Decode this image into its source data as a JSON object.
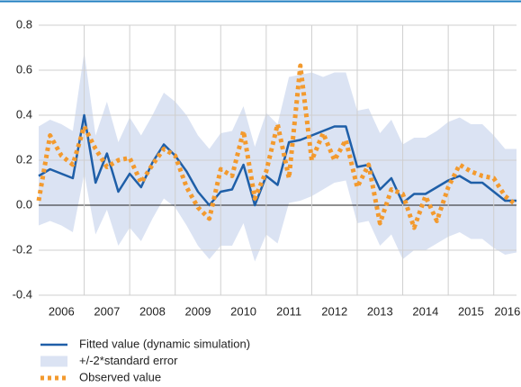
{
  "chart_data": {
    "type": "line",
    "x": [
      2006,
      2006.25,
      2006.5,
      2006.75,
      2007,
      2007.25,
      2007.5,
      2007.75,
      2008,
      2008.25,
      2008.5,
      2008.75,
      2009,
      2009.25,
      2009.5,
      2009.75,
      2010,
      2010.25,
      2010.5,
      2010.75,
      2011,
      2011.25,
      2011.5,
      2011.75,
      2012,
      2012.25,
      2012.5,
      2012.75,
      2013,
      2013.25,
      2013.5,
      2013.75,
      2014,
      2014.25,
      2014.5,
      2014.75,
      2015,
      2015.25,
      2015.5,
      2015.75,
      2016,
      2016.25,
      2016.5
    ],
    "series": [
      {
        "name": "Fitted value (dynamic simulation)",
        "color": "#1f5fa8",
        "style": "solid",
        "values": [
          0.13,
          0.16,
          0.14,
          0.12,
          0.4,
          0.1,
          0.23,
          0.06,
          0.14,
          0.08,
          0.19,
          0.27,
          0.22,
          0.15,
          0.06,
          0.0,
          0.06,
          0.07,
          0.18,
          0.0,
          0.13,
          0.09,
          0.28,
          0.29,
          0.31,
          0.33,
          0.35,
          0.35,
          0.17,
          0.18,
          0.07,
          0.12,
          0.01,
          0.05,
          0.05,
          0.08,
          0.11,
          0.13,
          0.1,
          0.1,
          0.06,
          0.02,
          0.02
        ]
      },
      {
        "name": "+/-2*standard error",
        "color": "#dbe3f3",
        "style": "band",
        "upper": [
          0.35,
          0.38,
          0.36,
          0.33,
          0.68,
          0.31,
          0.46,
          0.28,
          0.39,
          0.31,
          0.4,
          0.5,
          0.46,
          0.4,
          0.31,
          0.25,
          0.32,
          0.33,
          0.44,
          0.26,
          0.41,
          0.36,
          0.57,
          0.58,
          0.59,
          0.57,
          0.59,
          0.59,
          0.42,
          0.43,
          0.32,
          0.38,
          0.27,
          0.3,
          0.3,
          0.33,
          0.37,
          0.39,
          0.36,
          0.36,
          0.31,
          0.25,
          0.25
        ],
        "lower": [
          -0.09,
          -0.07,
          -0.09,
          -0.12,
          0.14,
          -0.13,
          -0.02,
          -0.18,
          -0.1,
          -0.16,
          -0.06,
          0.03,
          -0.01,
          -0.09,
          -0.18,
          -0.24,
          -0.18,
          -0.18,
          -0.08,
          -0.25,
          -0.13,
          -0.17,
          0.01,
          0.02,
          0.04,
          0.07,
          0.1,
          0.11,
          -0.08,
          -0.07,
          -0.18,
          -0.13,
          -0.24,
          -0.2,
          -0.2,
          -0.17,
          -0.14,
          -0.12,
          -0.15,
          -0.15,
          -0.19,
          -0.22,
          -0.21
        ]
      },
      {
        "name": "Observed value",
        "color": "#f39a2e",
        "style": "dotted",
        "values": [
          0.02,
          0.31,
          0.22,
          0.18,
          0.35,
          0.25,
          0.17,
          0.2,
          0.21,
          0.1,
          0.18,
          0.25,
          0.22,
          0.08,
          -0.01,
          -0.06,
          0.16,
          0.13,
          0.33,
          0.03,
          0.15,
          0.36,
          0.12,
          0.62,
          0.2,
          0.32,
          0.2,
          0.29,
          0.08,
          0.18,
          -0.08,
          0.07,
          0.05,
          -0.1,
          0.04,
          -0.07,
          0.08,
          0.18,
          0.15,
          0.13,
          0.12,
          0.04,
          0.0
        ]
      }
    ],
    "xlim": [
      2006,
      2016.5
    ],
    "xticks": [
      {
        "value": 2006.5,
        "label": "2006"
      },
      {
        "value": 2007.5,
        "label": "2007"
      },
      {
        "value": 2008.5,
        "label": "2008"
      },
      {
        "value": 2009.5,
        "label": "2009"
      },
      {
        "value": 2010.5,
        "label": "2010"
      },
      {
        "value": 2011.5,
        "label": "2011"
      },
      {
        "value": 2012.5,
        "label": "2012"
      },
      {
        "value": 2013.5,
        "label": "2013"
      },
      {
        "value": 2014.5,
        "label": "2014"
      },
      {
        "value": 2015.5,
        "label": "2015"
      },
      {
        "value": 2016.3,
        "label": "2016"
      }
    ],
    "xgrid": [
      2007,
      2008,
      2009,
      2010,
      2011,
      2012,
      2013,
      2014,
      2015,
      2016
    ],
    "ylim": [
      -0.4,
      0.8
    ],
    "yticks": [
      {
        "value": -0.4,
        "label": "-0.4"
      },
      {
        "value": -0.2,
        "label": "-0.2"
      },
      {
        "value": 0.0,
        "label": "0.0"
      },
      {
        "value": 0.2,
        "label": "0.2"
      },
      {
        "value": 0.4,
        "label": "0.4"
      },
      {
        "value": 0.6,
        "label": "0.6"
      },
      {
        "value": 0.8,
        "label": "0.8"
      }
    ],
    "grid": true
  }
}
